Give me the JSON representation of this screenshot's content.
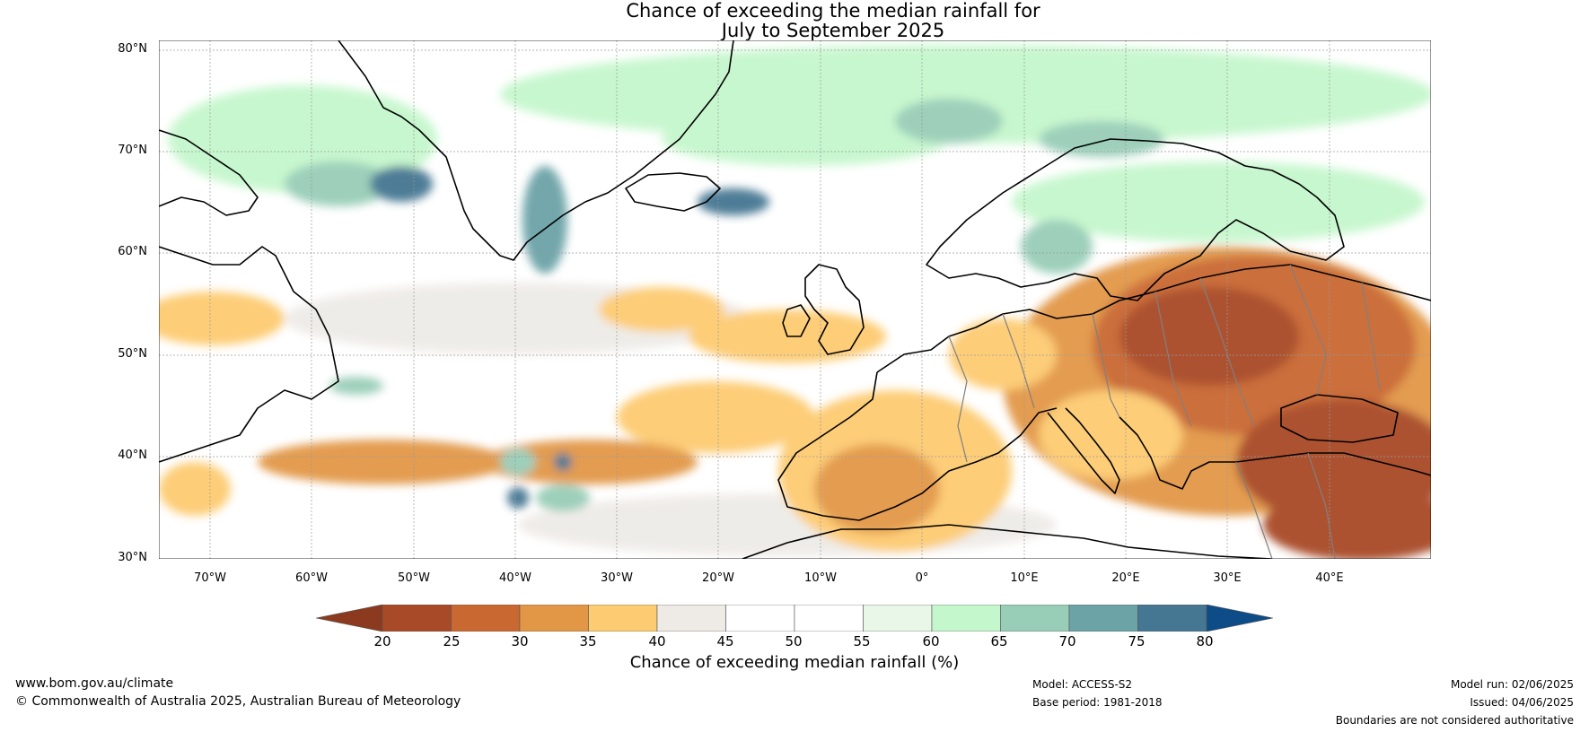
{
  "title": {
    "line1": "Chance of exceeding the median rainfall for",
    "line2": "July to September 2025"
  },
  "map": {
    "lat_labels": [
      "80°N",
      "70°N",
      "60°N",
      "50°N",
      "40°N",
      "30°N"
    ],
    "lon_labels": [
      "70°W",
      "60°W",
      "50°W",
      "40°W",
      "30°W",
      "20°W",
      "10°W",
      "0°",
      "10°E",
      "20°E",
      "30°E",
      "40°E"
    ],
    "lat_range": [
      30,
      80
    ],
    "lon_range": [
      -75,
      50
    ],
    "ocean_color": "#ffffff",
    "coast_color": "#000000",
    "border_color": "#808080"
  },
  "colorbar": {
    "label": "Chance of exceeding median rainfall (%)",
    "ticks": [
      "20",
      "25",
      "30",
      "35",
      "40",
      "45",
      "50",
      "55",
      "60",
      "65",
      "70",
      "75",
      "80"
    ],
    "under_color": "#8b3a1f",
    "over_color": "#0d4c86",
    "colors": [
      "#a84a27",
      "#c96830",
      "#e29746",
      "#fdcb71",
      "#eeebe7",
      "#ffffff",
      "#ffffff",
      "#e8f7e7",
      "#c5f7cc",
      "#98cdb7",
      "#6ca3a7",
      "#457692"
    ]
  },
  "footer": {
    "website": "www.bom.gov.au/climate",
    "copyright": "© Commonwealth of Australia 2025, Australian Bureau of Meteorology",
    "model": "Model: ACCESS-S2",
    "base_period": "Base period: 1981-2018",
    "model_run": "Model run: 02/06/2025",
    "issued": "Issued: 04/06/2025",
    "disclaimer": "Boundaries are not considered authoritative"
  }
}
